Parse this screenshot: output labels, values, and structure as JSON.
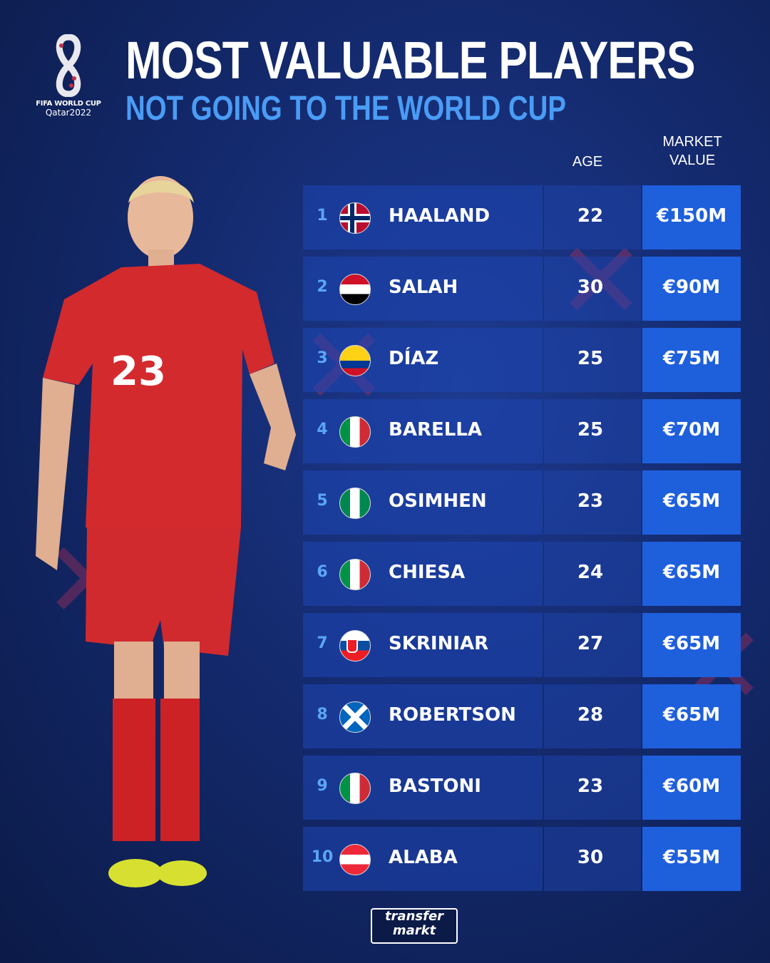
{
  "logo": {
    "line1": "FIFA WORLD CUP",
    "line2": "Qatar2022"
  },
  "header": {
    "title": "MOST VALUABLE PLAYERS",
    "subtitle": "NOT GOING TO THE WORLD CUP"
  },
  "columns": {
    "age": "AGE",
    "market_value_1": "MARKET",
    "market_value_2": "VALUE"
  },
  "colors": {
    "accent": "#4a9cf5",
    "value_cell": "#1e5fdc",
    "background": "#142a6e"
  },
  "players": [
    {
      "rank": "1",
      "flag": "norway",
      "name": "HAALAND",
      "age": "22",
      "value": "€150M"
    },
    {
      "rank": "2",
      "flag": "egypt",
      "name": "SALAH",
      "age": "30",
      "value": "€90M"
    },
    {
      "rank": "3",
      "flag": "colombia",
      "name": "DÍAZ",
      "age": "25",
      "value": "€75M"
    },
    {
      "rank": "4",
      "flag": "italy",
      "name": "BARELLA",
      "age": "25",
      "value": "€70M"
    },
    {
      "rank": "5",
      "flag": "nigeria",
      "name": "OSIMHEN",
      "age": "23",
      "value": "€65M"
    },
    {
      "rank": "6",
      "flag": "italy",
      "name": "CHIESA",
      "age": "24",
      "value": "€65M"
    },
    {
      "rank": "7",
      "flag": "slovakia",
      "name": "SKRINIAR",
      "age": "27",
      "value": "€65M"
    },
    {
      "rank": "8",
      "flag": "scotland",
      "name": "ROBERTSON",
      "age": "28",
      "value": "€65M"
    },
    {
      "rank": "9",
      "flag": "italy",
      "name": "BASTONI",
      "age": "23",
      "value": "€60M"
    },
    {
      "rank": "10",
      "flag": "austria",
      "name": "ALABA",
      "age": "30",
      "value": "€55M"
    }
  ],
  "player_photo": {
    "shirt_number": "23"
  },
  "footer": {
    "brand_1": "transfer",
    "brand_2": "markt"
  }
}
